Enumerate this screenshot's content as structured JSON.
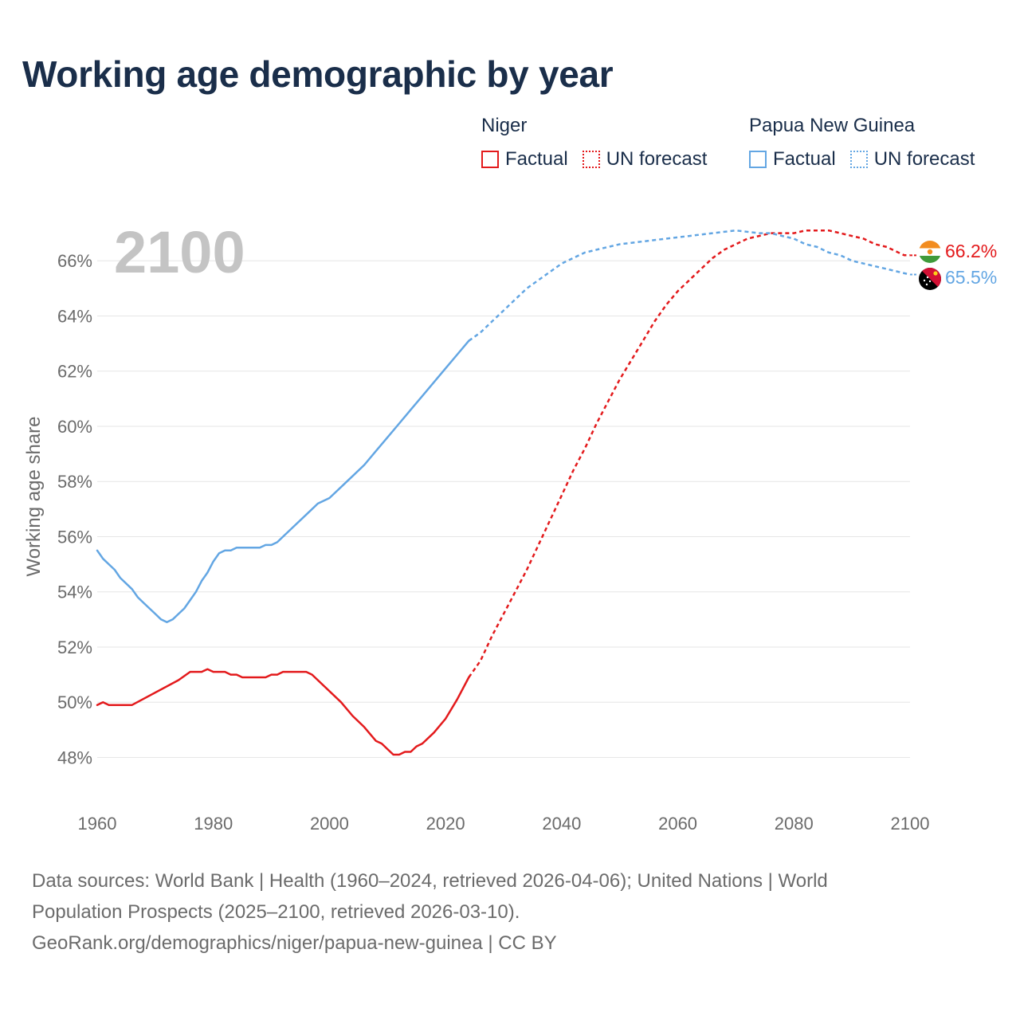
{
  "title": "Working age demographic by year",
  "legend": {
    "groups": [
      {
        "name": "Niger",
        "factual_label": "Factual",
        "forecast_label": "UN forecast",
        "color": "#e31a1c"
      },
      {
        "name": "Papua New Guinea",
        "factual_label": "Factual",
        "forecast_label": "UN forecast",
        "color": "#63a6e3"
      }
    ]
  },
  "year_watermark": "2100",
  "end_labels": {
    "niger": "66.2%",
    "png": "65.5%"
  },
  "footer": {
    "line1": "Data sources: World Bank | Health (1960–2024, retrieved 2026-04-06); United Nations | World",
    "line2": "Population Prospects (2025–2100, retrieved 2026-03-10).",
    "line3": "GeoRank.org/demographics/niger/papua-new-guinea | CC BY"
  },
  "chart_data": {
    "type": "line",
    "title": "Working age demographic by year",
    "xlabel": "",
    "ylabel": "Working age share",
    "xlim": [
      1960,
      2100
    ],
    "ylim": [
      46.8,
      68
    ],
    "x_ticks": [
      1960,
      1980,
      2000,
      2020,
      2040,
      2060,
      2080,
      2100
    ],
    "x_tick_labels": [
      "1960",
      "1980",
      "2000",
      "2020",
      "2040",
      "2060",
      "2080",
      "2100"
    ],
    "y_ticks": [
      48,
      50,
      52,
      54,
      56,
      58,
      60,
      62,
      64,
      66
    ],
    "y_tick_labels": [
      "48%",
      "50%",
      "52%",
      "54%",
      "56%",
      "58%",
      "60%",
      "62%",
      "64%",
      "66%"
    ],
    "grid": true,
    "factual_range": [
      1960,
      2024
    ],
    "forecast_range": [
      2024,
      2100
    ],
    "series": [
      {
        "name": "Niger",
        "color": "#e31a1c",
        "end_value": 66.2,
        "points": [
          [
            1960,
            49.9
          ],
          [
            1961,
            50.0
          ],
          [
            1962,
            49.9
          ],
          [
            1966,
            49.9
          ],
          [
            1974,
            50.8
          ],
          [
            1976,
            51.1
          ],
          [
            1978,
            51.1
          ],
          [
            1979,
            51.2
          ],
          [
            1980,
            51.1
          ],
          [
            1982,
            51.1
          ],
          [
            1983,
            51.0
          ],
          [
            1984,
            51.0
          ],
          [
            1985,
            50.9
          ],
          [
            1989,
            50.9
          ],
          [
            1990,
            51.0
          ],
          [
            1991,
            51.0
          ],
          [
            1992,
            51.1
          ],
          [
            1996,
            51.1
          ],
          [
            1997,
            51.0
          ],
          [
            2002,
            50.0
          ],
          [
            2004,
            49.5
          ],
          [
            2006,
            49.1
          ],
          [
            2008,
            48.6
          ],
          [
            2009,
            48.5
          ],
          [
            2010,
            48.3
          ],
          [
            2011,
            48.1
          ],
          [
            2012,
            48.1
          ],
          [
            2013,
            48.2
          ],
          [
            2014,
            48.2
          ],
          [
            2015,
            48.4
          ],
          [
            2016,
            48.5
          ],
          [
            2018,
            48.9
          ],
          [
            2020,
            49.4
          ],
          [
            2022,
            50.1
          ],
          [
            2024,
            50.9
          ],
          [
            2026,
            51.5
          ],
          [
            2028,
            52.4
          ],
          [
            2030,
            53.2
          ],
          [
            2032,
            54.0
          ],
          [
            2034,
            54.8
          ],
          [
            2036,
            55.7
          ],
          [
            2038,
            56.6
          ],
          [
            2040,
            57.5
          ],
          [
            2042,
            58.4
          ],
          [
            2044,
            59.2
          ],
          [
            2046,
            60.1
          ],
          [
            2048,
            60.9
          ],
          [
            2050,
            61.7
          ],
          [
            2052,
            62.4
          ],
          [
            2054,
            63.1
          ],
          [
            2056,
            63.8
          ],
          [
            2058,
            64.4
          ],
          [
            2060,
            64.9
          ],
          [
            2062,
            65.3
          ],
          [
            2064,
            65.7
          ],
          [
            2066,
            66.1
          ],
          [
            2068,
            66.4
          ],
          [
            2070,
            66.6
          ],
          [
            2072,
            66.8
          ],
          [
            2074,
            66.9
          ],
          [
            2076,
            67.0
          ],
          [
            2078,
            67.0
          ],
          [
            2080,
            67.0
          ],
          [
            2082,
            67.1
          ],
          [
            2086,
            67.1
          ],
          [
            2088,
            67.0
          ],
          [
            2090,
            66.9
          ],
          [
            2092,
            66.8
          ],
          [
            2094,
            66.6
          ],
          [
            2096,
            66.5
          ],
          [
            2098,
            66.3
          ],
          [
            2099,
            66.2
          ],
          [
            2100,
            66.2
          ]
        ]
      },
      {
        "name": "Papua New Guinea",
        "color": "#63a6e3",
        "end_value": 65.5,
        "points": [
          [
            1960,
            55.5
          ],
          [
            1961,
            55.2
          ],
          [
            1962,
            55.0
          ],
          [
            1963,
            54.8
          ],
          [
            1964,
            54.5
          ],
          [
            1965,
            54.3
          ],
          [
            1966,
            54.1
          ],
          [
            1967,
            53.8
          ],
          [
            1968,
            53.6
          ],
          [
            1969,
            53.4
          ],
          [
            1970,
            53.2
          ],
          [
            1971,
            53.0
          ],
          [
            1972,
            52.9
          ],
          [
            1973,
            53.0
          ],
          [
            1974,
            53.2
          ],
          [
            1975,
            53.4
          ],
          [
            1976,
            53.7
          ],
          [
            1977,
            54.0
          ],
          [
            1978,
            54.4
          ],
          [
            1979,
            54.7
          ],
          [
            1980,
            55.1
          ],
          [
            1981,
            55.4
          ],
          [
            1982,
            55.5
          ],
          [
            1983,
            55.5
          ],
          [
            1984,
            55.6
          ],
          [
            1988,
            55.6
          ],
          [
            1989,
            55.7
          ],
          [
            1990,
            55.7
          ],
          [
            1991,
            55.8
          ],
          [
            1992,
            56.0
          ],
          [
            1994,
            56.4
          ],
          [
            1996,
            56.8
          ],
          [
            1998,
            57.2
          ],
          [
            2000,
            57.4
          ],
          [
            2002,
            57.8
          ],
          [
            2004,
            58.2
          ],
          [
            2006,
            58.6
          ],
          [
            2008,
            59.1
          ],
          [
            2010,
            59.6
          ],
          [
            2012,
            60.1
          ],
          [
            2014,
            60.6
          ],
          [
            2016,
            61.1
          ],
          [
            2018,
            61.6
          ],
          [
            2020,
            62.1
          ],
          [
            2022,
            62.6
          ],
          [
            2024,
            63.1
          ],
          [
            2026,
            63.4
          ],
          [
            2028,
            63.8
          ],
          [
            2030,
            64.2
          ],
          [
            2032,
            64.6
          ],
          [
            2034,
            65.0
          ],
          [
            2036,
            65.3
          ],
          [
            2038,
            65.6
          ],
          [
            2040,
            65.9
          ],
          [
            2042,
            66.1
          ],
          [
            2044,
            66.3
          ],
          [
            2046,
            66.4
          ],
          [
            2048,
            66.5
          ],
          [
            2050,
            66.6
          ],
          [
            2054,
            66.7
          ],
          [
            2058,
            66.8
          ],
          [
            2062,
            66.9
          ],
          [
            2066,
            67.0
          ],
          [
            2070,
            67.1
          ],
          [
            2074,
            67.0
          ],
          [
            2076,
            67.0
          ],
          [
            2078,
            66.9
          ],
          [
            2080,
            66.8
          ],
          [
            2082,
            66.6
          ],
          [
            2084,
            66.5
          ],
          [
            2086,
            66.3
          ],
          [
            2088,
            66.2
          ],
          [
            2090,
            66.0
          ],
          [
            2092,
            65.9
          ],
          [
            2094,
            65.8
          ],
          [
            2096,
            65.7
          ],
          [
            2098,
            65.6
          ],
          [
            2100,
            65.5
          ]
        ]
      }
    ]
  }
}
